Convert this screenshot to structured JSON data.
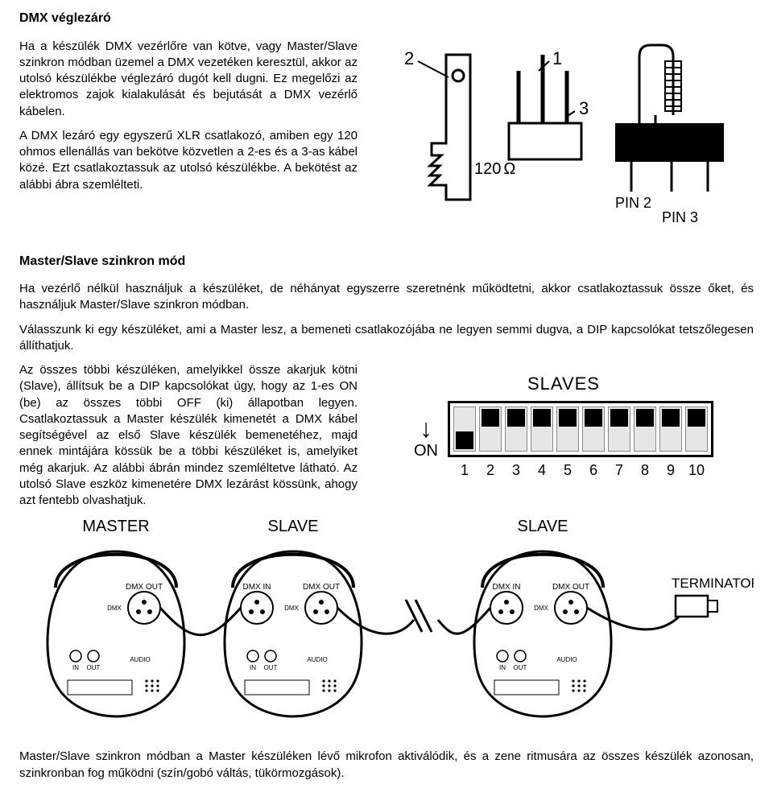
{
  "title": "DMX véglezáró",
  "sec1_p1": "Ha a készülék DMX vezérlőre van kötve, vagy Master/Slave szinkron módban üzemel a DMX vezetéken keresztül, akkor az utolsó készülékbe véglezáró dugót kell dugni. Ez megelőzi az elektromos zajok kialakulását és bejutását a DMX vezérlő kábelen.",
  "sec1_p2": "A DMX lezáró egy egyszerű XLR csatlakozó, amiben egy 120 ohmos ellenállás van bekötve közvetlen a 2-es és a 3-as kábel közé. Ezt csatlakoztassuk az utolsó készülékbe. A bekötést az alábbi ábra szemlélteti.",
  "xlr_diagram": {
    "label_1": "1",
    "label_2": "2",
    "label_3": "3",
    "ohm_label": "120",
    "ohm_unit": "Ω",
    "pin2": "PIN 2",
    "pin3": "PIN 3",
    "colors": {
      "stroke": "#000000",
      "fill_black": "#000000",
      "bg": "#ffffff"
    }
  },
  "sec2_title": "Master/Slave szinkron mód",
  "sec2_full": "Ha vezérlő nélkül használjuk a készüléket, de néhányat egyszerre szeretnénk működtetni, akkor csatlakoztassuk össze őket, és használjuk Master/Slave szinkron módban.",
  "sec2_full2": "Válasszunk ki egy készüléket, ami a Master lesz, a bemeneti csatlakozójába ne legyen semmi dugva, a DIP kapcsolókat tetszőlegesen állíthatjuk.",
  "sec2_left": "Az összes többi készüléken, amelyikkel össze akarjuk kötni (Slave), állítsuk be a DIP kapcsolókat úgy, hogy az 1-es ON (be) az összes többi OFF (ki) állapotban legyen. Csatlakoztassuk a Master készülék kimenetét a DMX kábel segítségével az első Slave készülék bemenetéhez, majd ennek mintájára kössük be a többi készüléket is, amelyiket még akarjuk. Az alábbi ábrán mindez szemléltetve látható. Az utolsó Slave eszköz kimenetére DMX lezárást kössünk, ahogy azt fentebb olvashatjuk.",
  "dip": {
    "title": "SLAVES",
    "on_label": "ON",
    "switches": [
      true,
      false,
      false,
      false,
      false,
      false,
      false,
      false,
      false,
      false
    ],
    "numbers": [
      "1",
      "2",
      "3",
      "4",
      "5",
      "6",
      "7",
      "8",
      "9",
      "10"
    ],
    "colors": {
      "border": "#000000",
      "slot_bg": "#e6e6e6",
      "knob": "#000000"
    }
  },
  "chain": {
    "labels": {
      "master": "MASTER",
      "slave": "SLAVE",
      "terminator": "TERMINATOR"
    },
    "port_labels": {
      "dmx": "DMX",
      "dmx_in": "DMX IN",
      "dmx_out": "DMX OUT",
      "in": "IN",
      "out": "OUT",
      "audio": "AUDIO"
    },
    "devices": [
      "master",
      "slave",
      "slave"
    ],
    "colors": {
      "stroke": "#000000",
      "fill": "#ffffff"
    }
  },
  "footer": "Master/Slave szinkron módban a Master készüléken lévő mikrofon aktiválódik, és a zene ritmusára az összes készülék azonosan, szinkronban fog működni (szín/gobó váltás, tükörmozgások)."
}
